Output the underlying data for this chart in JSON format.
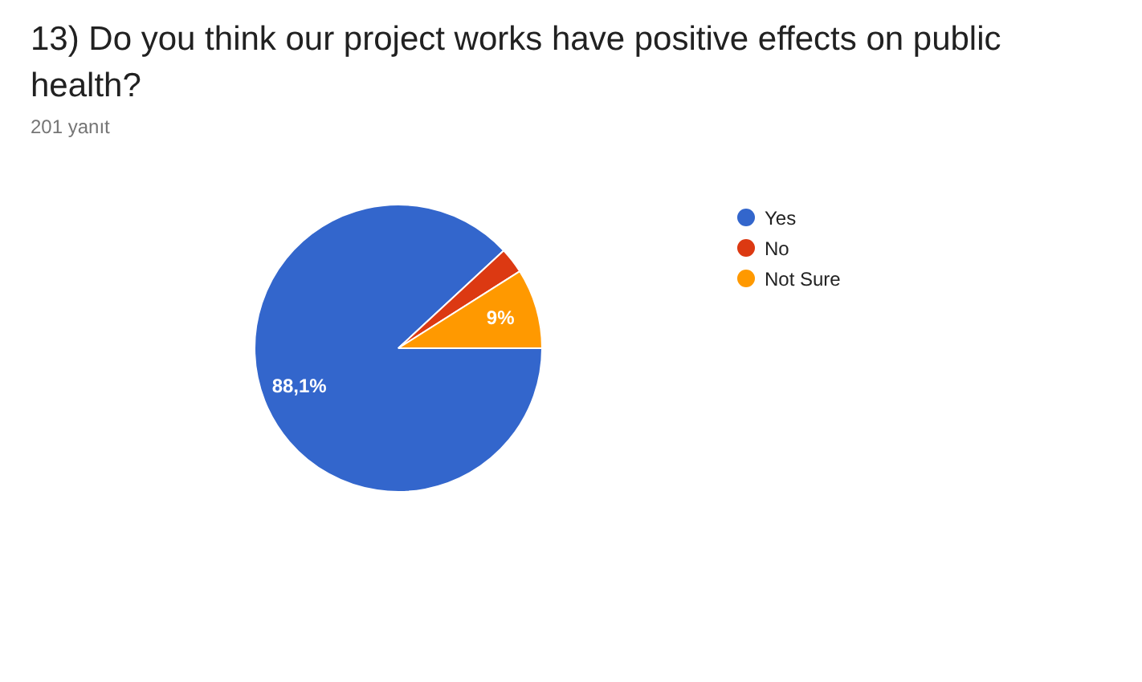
{
  "chart_data": {
    "type": "pie",
    "title": "13) Do you think our project works have positive effects on public health?",
    "subtitle": "201 yanıt",
    "categories": [
      "Yes",
      "No",
      "Not Sure"
    ],
    "values": [
      88.1,
      2.9,
      9
    ],
    "colors": [
      "#3366cc",
      "#dc3912",
      "#ff9900"
    ],
    "value_labels": [
      "88,1%",
      null,
      "9%"
    ],
    "legend": "right"
  }
}
